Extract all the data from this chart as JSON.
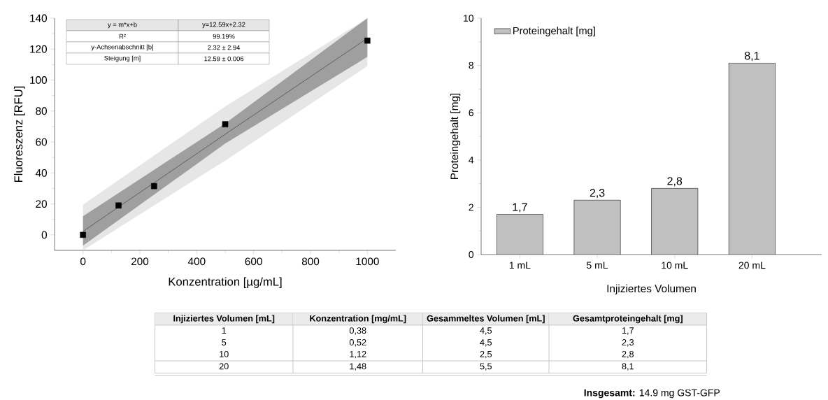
{
  "chart_data": [
    {
      "type": "scatter",
      "xlabel": "Konzentration [µg/mL]",
      "ylabel": "Fluoreszenz [RFU]",
      "xlim": [
        -100,
        1100
      ],
      "ylim": [
        -10,
        140
      ],
      "xticks": [
        0,
        200,
        400,
        600,
        800,
        1000
      ],
      "yticks": [
        0,
        20,
        40,
        60,
        80,
        100,
        120,
        140
      ],
      "series": [
        {
          "type": "line",
          "color": "#e6e6e6",
          "x": [
            0,
            500,
            1000
          ],
          "values": [
            null,
            null,
            null
          ],
          "lower": [
            -10,
            48,
            109
          ],
          "upper": [
            19.5,
            83,
            140
          ]
        },
        {
          "type": "line",
          "color": "#404040",
          "x": [
            0,
            500,
            1000
          ],
          "values": [
            2.3,
            65,
            127
          ],
          "lower": [
            -7,
            59,
            115
          ],
          "upper": [
            12,
            72,
            140
          ]
        },
        {
          "type": "scatter",
          "color": "#000000",
          "marker": "square",
          "x": [
            0,
            125,
            250,
            500,
            1000
          ],
          "values": [
            0,
            19,
            31.5,
            71.5,
            125.5
          ]
        }
      ],
      "annotations": [
        "y = m*x+b",
        "y=12.59x+2.32",
        "R²",
        "99.19%",
        "y-Achsenabschnitt [b]",
        "2.32 ± 2.94",
        "Steigung [m]",
        "12.59 ± 0.006"
      ]
    },
    {
      "type": "bar",
      "xlabel": "Injiziertes Volumen",
      "ylabel": "Proteingehalt [mg]",
      "categories": [
        "1 mL",
        "5 mL",
        "10 mL",
        "20 mL"
      ],
      "ylim": [
        0,
        10
      ],
      "yticks": [
        0,
        2,
        4,
        6,
        8,
        10
      ],
      "legend": "top left",
      "series": [
        {
          "name": "Proteingehalt [mg]",
          "color": "#c0c0c0",
          "values": [
            1.7,
            2.3,
            2.8,
            8.1
          ],
          "value_labels": [
            "1,7",
            "2,3",
            "2,8",
            "8,1"
          ]
        }
      ]
    },
    {
      "type": "other",
      "annotations": [
        "Injiziertes Volumen [mL]",
        "Konzentration [mg/mL]",
        "Gesammeltes Volumen [mL]",
        "Gesamtproteingehalt [mg]",
        "1",
        "0,38",
        "4,5",
        "1,7",
        "5",
        "0,52",
        "4,5",
        "2,3",
        "10",
        "1,12",
        "2,5",
        "2,8",
        "20",
        "1,48",
        "5,5",
        "8,1",
        "**Insgesamt:** 14.9 mg GST-GFP"
      ]
    }
  ]
}
